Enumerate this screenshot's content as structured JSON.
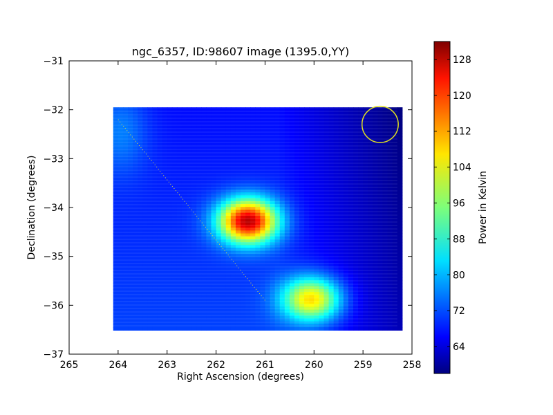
{
  "chart_data": {
    "type": "heatmap",
    "title": "ngc_6357, ID:98607 image (1395.0,YY)",
    "xlabel": "Right Ascension (degrees)",
    "ylabel": "Declination (degrees)",
    "xlim": [
      265,
      258
    ],
    "ylim": [
      -37,
      -31
    ],
    "xticks": [
      265,
      264,
      263,
      262,
      261,
      260,
      259,
      258
    ],
    "yticks": [
      -31,
      -32,
      -33,
      -34,
      -35,
      -36,
      -37
    ],
    "xtick_labels": [
      "265",
      "264",
      "263",
      "262",
      "261",
      "260",
      "259",
      "258"
    ],
    "ytick_labels": [
      "−31",
      "−32",
      "−33",
      "−34",
      "−35",
      "−36",
      "−37"
    ],
    "map_extent": {
      "ra": [
        264.1,
        258.3
      ],
      "dec": [
        -36.45,
        -31.95
      ]
    },
    "background_level": 72,
    "sources": [
      {
        "ra": 261.4,
        "dec": -34.25,
        "peak": 130
      },
      {
        "ra": 260.1,
        "dec": -35.85,
        "peak": 110
      }
    ],
    "beam_circle": {
      "ra": 258.65,
      "dec": -32.3,
      "radius_deg": 0.37,
      "color": "#e0e020"
    },
    "dotted_line": {
      "from": [
        264.0,
        -32.2
      ],
      "to": [
        261.0,
        -35.9
      ]
    },
    "colorbar": {
      "label": "Power in Kelvin",
      "range": [
        58,
        132
      ],
      "ticks": [
        64,
        72,
        80,
        88,
        96,
        104,
        112,
        120,
        128
      ],
      "tick_labels": [
        "64",
        "72",
        "80",
        "88",
        "96",
        "104",
        "112",
        "120",
        "128"
      ],
      "colormap": "jet"
    }
  }
}
